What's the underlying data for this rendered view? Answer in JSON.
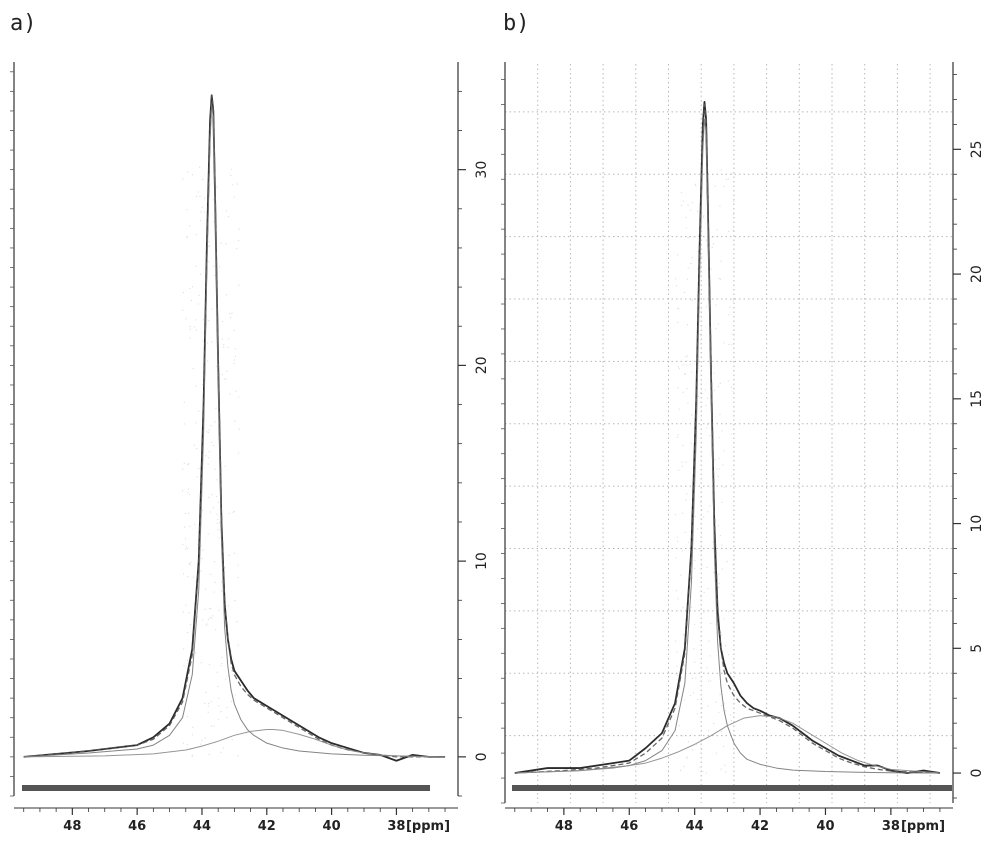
{
  "chart_data": [
    {
      "type": "line",
      "panel_label": "a)",
      "xlabel": "[ppm]",
      "x_reversed": true,
      "xlim": [
        49.8,
        36.1
      ],
      "ylim": [
        -2,
        35.5
      ],
      "x_ticks": [
        48,
        46,
        44,
        42,
        40,
        38
      ],
      "y_ticks": [
        0,
        10,
        20,
        30
      ],
      "y_axis_side": "right",
      "grid": false,
      "series": [
        {
          "kind": "experimental",
          "x": [
            49.5,
            47.5,
            46.0,
            45.5,
            45.0,
            44.6,
            44.3,
            44.1,
            43.95,
            43.85,
            43.75,
            43.7,
            43.65,
            43.6,
            43.5,
            43.4,
            43.3,
            43.2,
            43.1,
            43.0,
            42.8,
            42.6,
            42.4,
            42.2,
            42.0,
            41.8,
            41.5,
            41.2,
            41.0,
            40.7,
            40.4,
            40.0,
            39.6,
            39.0,
            38.5,
            38.0,
            37.5,
            37.0,
            36.5
          ],
          "y": [
            0,
            0.3,
            0.6,
            1.0,
            1.7,
            3.0,
            5.5,
            10.0,
            18.0,
            26.0,
            32.5,
            33.8,
            33.0,
            29.0,
            20.0,
            12.0,
            7.8,
            6.0,
            5.0,
            4.4,
            3.9,
            3.4,
            3.0,
            2.8,
            2.6,
            2.4,
            2.1,
            1.8,
            1.6,
            1.3,
            1.0,
            0.7,
            0.5,
            0.2,
            0.1,
            -0.2,
            0.1,
            0.0,
            0.0
          ]
        },
        {
          "kind": "fit-sum",
          "x": [
            49.5,
            47.5,
            46.0,
            45.5,
            45.0,
            44.6,
            44.3,
            44.1,
            43.95,
            43.85,
            43.75,
            43.7,
            43.65,
            43.6,
            43.5,
            43.4,
            43.3,
            43.2,
            43.1,
            43.0,
            42.8,
            42.6,
            42.4,
            42.2,
            42.0,
            41.8,
            41.5,
            41.2,
            41.0,
            40.7,
            40.4,
            40.0,
            39.6,
            39.0,
            38.5,
            38.0,
            37.5,
            37.0,
            36.5
          ],
          "y": [
            0,
            0.3,
            0.6,
            0.9,
            1.6,
            2.8,
            5.2,
            9.8,
            17.5,
            25.5,
            32.0,
            33.8,
            33.2,
            29.5,
            20.5,
            12.5,
            8.0,
            6.0,
            4.8,
            4.2,
            3.6,
            3.2,
            2.9,
            2.7,
            2.5,
            2.3,
            2.0,
            1.7,
            1.5,
            1.2,
            0.9,
            0.6,
            0.4,
            0.2,
            0.1,
            0.0,
            0.0,
            0.0,
            0.0
          ]
        },
        {
          "kind": "fit-narrow",
          "x": [
            49.5,
            47.5,
            46.0,
            45.5,
            45.0,
            44.6,
            44.3,
            44.1,
            43.95,
            43.85,
            43.75,
            43.7,
            43.65,
            43.6,
            43.5,
            43.4,
            43.3,
            43.2,
            43.1,
            43.0,
            42.8,
            42.6,
            42.4,
            42.0,
            41.5,
            41.0,
            40.0,
            39.0,
            38.0,
            37.0,
            36.5
          ],
          "y": [
            0,
            0.2,
            0.4,
            0.6,
            1.1,
            2.0,
            4.2,
            8.5,
            16.5,
            24.8,
            31.5,
            33.3,
            32.7,
            28.8,
            19.5,
            11.2,
            6.6,
            4.6,
            3.4,
            2.7,
            1.9,
            1.4,
            1.1,
            0.7,
            0.45,
            0.3,
            0.15,
            0.08,
            0.05,
            0.02,
            0.0
          ]
        },
        {
          "kind": "fit-broad",
          "x": [
            49.5,
            47.0,
            45.5,
            44.5,
            44.0,
            43.5,
            43.0,
            42.5,
            42.0,
            41.8,
            41.5,
            41.0,
            40.5,
            40.0,
            39.5,
            39.0,
            38.5,
            38.0,
            37.0,
            36.5
          ],
          "y": [
            0,
            0.05,
            0.15,
            0.35,
            0.55,
            0.8,
            1.1,
            1.3,
            1.4,
            1.4,
            1.35,
            1.15,
            0.9,
            0.6,
            0.35,
            0.2,
            0.1,
            0.05,
            0.0,
            0.0
          ]
        }
      ]
    },
    {
      "type": "line",
      "panel_label": "b)",
      "xlabel": "[ppm]",
      "x_reversed": true,
      "xlim": [
        49.8,
        36.1
      ],
      "ylim": [
        -1.2,
        28.5
      ],
      "x_ticks": [
        48,
        46,
        44,
        42,
        40,
        38
      ],
      "y_ticks": [
        0,
        5,
        10,
        15,
        20,
        25
      ],
      "y_axis_side": "right",
      "grid": true,
      "series": [
        {
          "kind": "experimental",
          "x": [
            49.5,
            48.5,
            47.5,
            46.5,
            46.0,
            45.5,
            45.0,
            44.6,
            44.3,
            44.1,
            43.95,
            43.85,
            43.75,
            43.7,
            43.65,
            43.6,
            43.5,
            43.4,
            43.3,
            43.2,
            43.1,
            43.0,
            42.8,
            42.6,
            42.4,
            42.2,
            42.0,
            41.7,
            41.4,
            41.0,
            40.7,
            40.4,
            40.0,
            39.6,
            39.2,
            38.8,
            38.4,
            38.0,
            37.5,
            37.0,
            36.5
          ],
          "y": [
            0,
            0.2,
            0.2,
            0.4,
            0.5,
            1.0,
            1.6,
            2.8,
            5.0,
            9.0,
            15.0,
            21.0,
            26.0,
            26.9,
            26.2,
            23.0,
            16.0,
            10.0,
            6.5,
            5.0,
            4.4,
            4.0,
            3.6,
            3.1,
            2.8,
            2.6,
            2.5,
            2.3,
            2.2,
            1.9,
            1.6,
            1.3,
            1.0,
            0.7,
            0.5,
            0.3,
            0.3,
            0.1,
            0.0,
            0.1,
            0.0
          ]
        },
        {
          "kind": "fit-sum",
          "x": [
            49.5,
            48.0,
            47.0,
            46.0,
            45.5,
            45.0,
            44.6,
            44.3,
            44.1,
            43.95,
            43.85,
            43.75,
            43.7,
            43.65,
            43.6,
            43.5,
            43.4,
            43.3,
            43.2,
            43.1,
            43.0,
            42.8,
            42.6,
            42.4,
            42.2,
            42.0,
            41.7,
            41.4,
            41.0,
            40.7,
            40.4,
            40.0,
            39.6,
            39.2,
            38.8,
            38.4,
            38.0,
            37.0,
            36.5
          ],
          "y": [
            0,
            0.1,
            0.2,
            0.4,
            0.8,
            1.4,
            2.6,
            4.8,
            8.8,
            14.8,
            20.8,
            25.8,
            26.8,
            26.3,
            23.2,
            16.5,
            10.5,
            6.8,
            5.0,
            4.1,
            3.6,
            3.1,
            2.8,
            2.6,
            2.5,
            2.4,
            2.25,
            2.1,
            1.8,
            1.5,
            1.2,
            0.9,
            0.6,
            0.4,
            0.25,
            0.15,
            0.08,
            0.02,
            0.0
          ]
        },
        {
          "kind": "fit-narrow",
          "x": [
            49.5,
            47.5,
            46.0,
            45.5,
            45.0,
            44.6,
            44.3,
            44.1,
            43.95,
            43.85,
            43.75,
            43.7,
            43.65,
            43.6,
            43.5,
            43.4,
            43.3,
            43.2,
            43.1,
            43.0,
            42.8,
            42.6,
            42.4,
            42.0,
            41.5,
            41.0,
            40.0,
            39.0,
            38.0,
            37.0,
            36.5
          ],
          "y": [
            0,
            0.1,
            0.3,
            0.5,
            0.9,
            1.7,
            3.6,
            7.6,
            13.6,
            19.9,
            25.0,
            26.2,
            25.7,
            22.5,
            15.5,
            9.0,
            5.3,
            3.5,
            2.5,
            1.9,
            1.2,
            0.8,
            0.55,
            0.35,
            0.2,
            0.12,
            0.06,
            0.03,
            0.01,
            0.0,
            0.0
          ]
        },
        {
          "kind": "fit-broad",
          "x": [
            49.5,
            47.5,
            46.5,
            45.5,
            45.0,
            44.5,
            44.0,
            43.5,
            43.0,
            42.5,
            42.0,
            41.5,
            41.0,
            40.5,
            40.0,
            39.5,
            39.0,
            38.5,
            38.0,
            37.0,
            36.5
          ],
          "y": [
            0,
            0.1,
            0.2,
            0.4,
            0.6,
            0.85,
            1.15,
            1.5,
            1.9,
            2.2,
            2.3,
            2.25,
            2.0,
            1.6,
            1.2,
            0.8,
            0.5,
            0.3,
            0.15,
            0.05,
            0.0
          ]
        }
      ]
    }
  ]
}
